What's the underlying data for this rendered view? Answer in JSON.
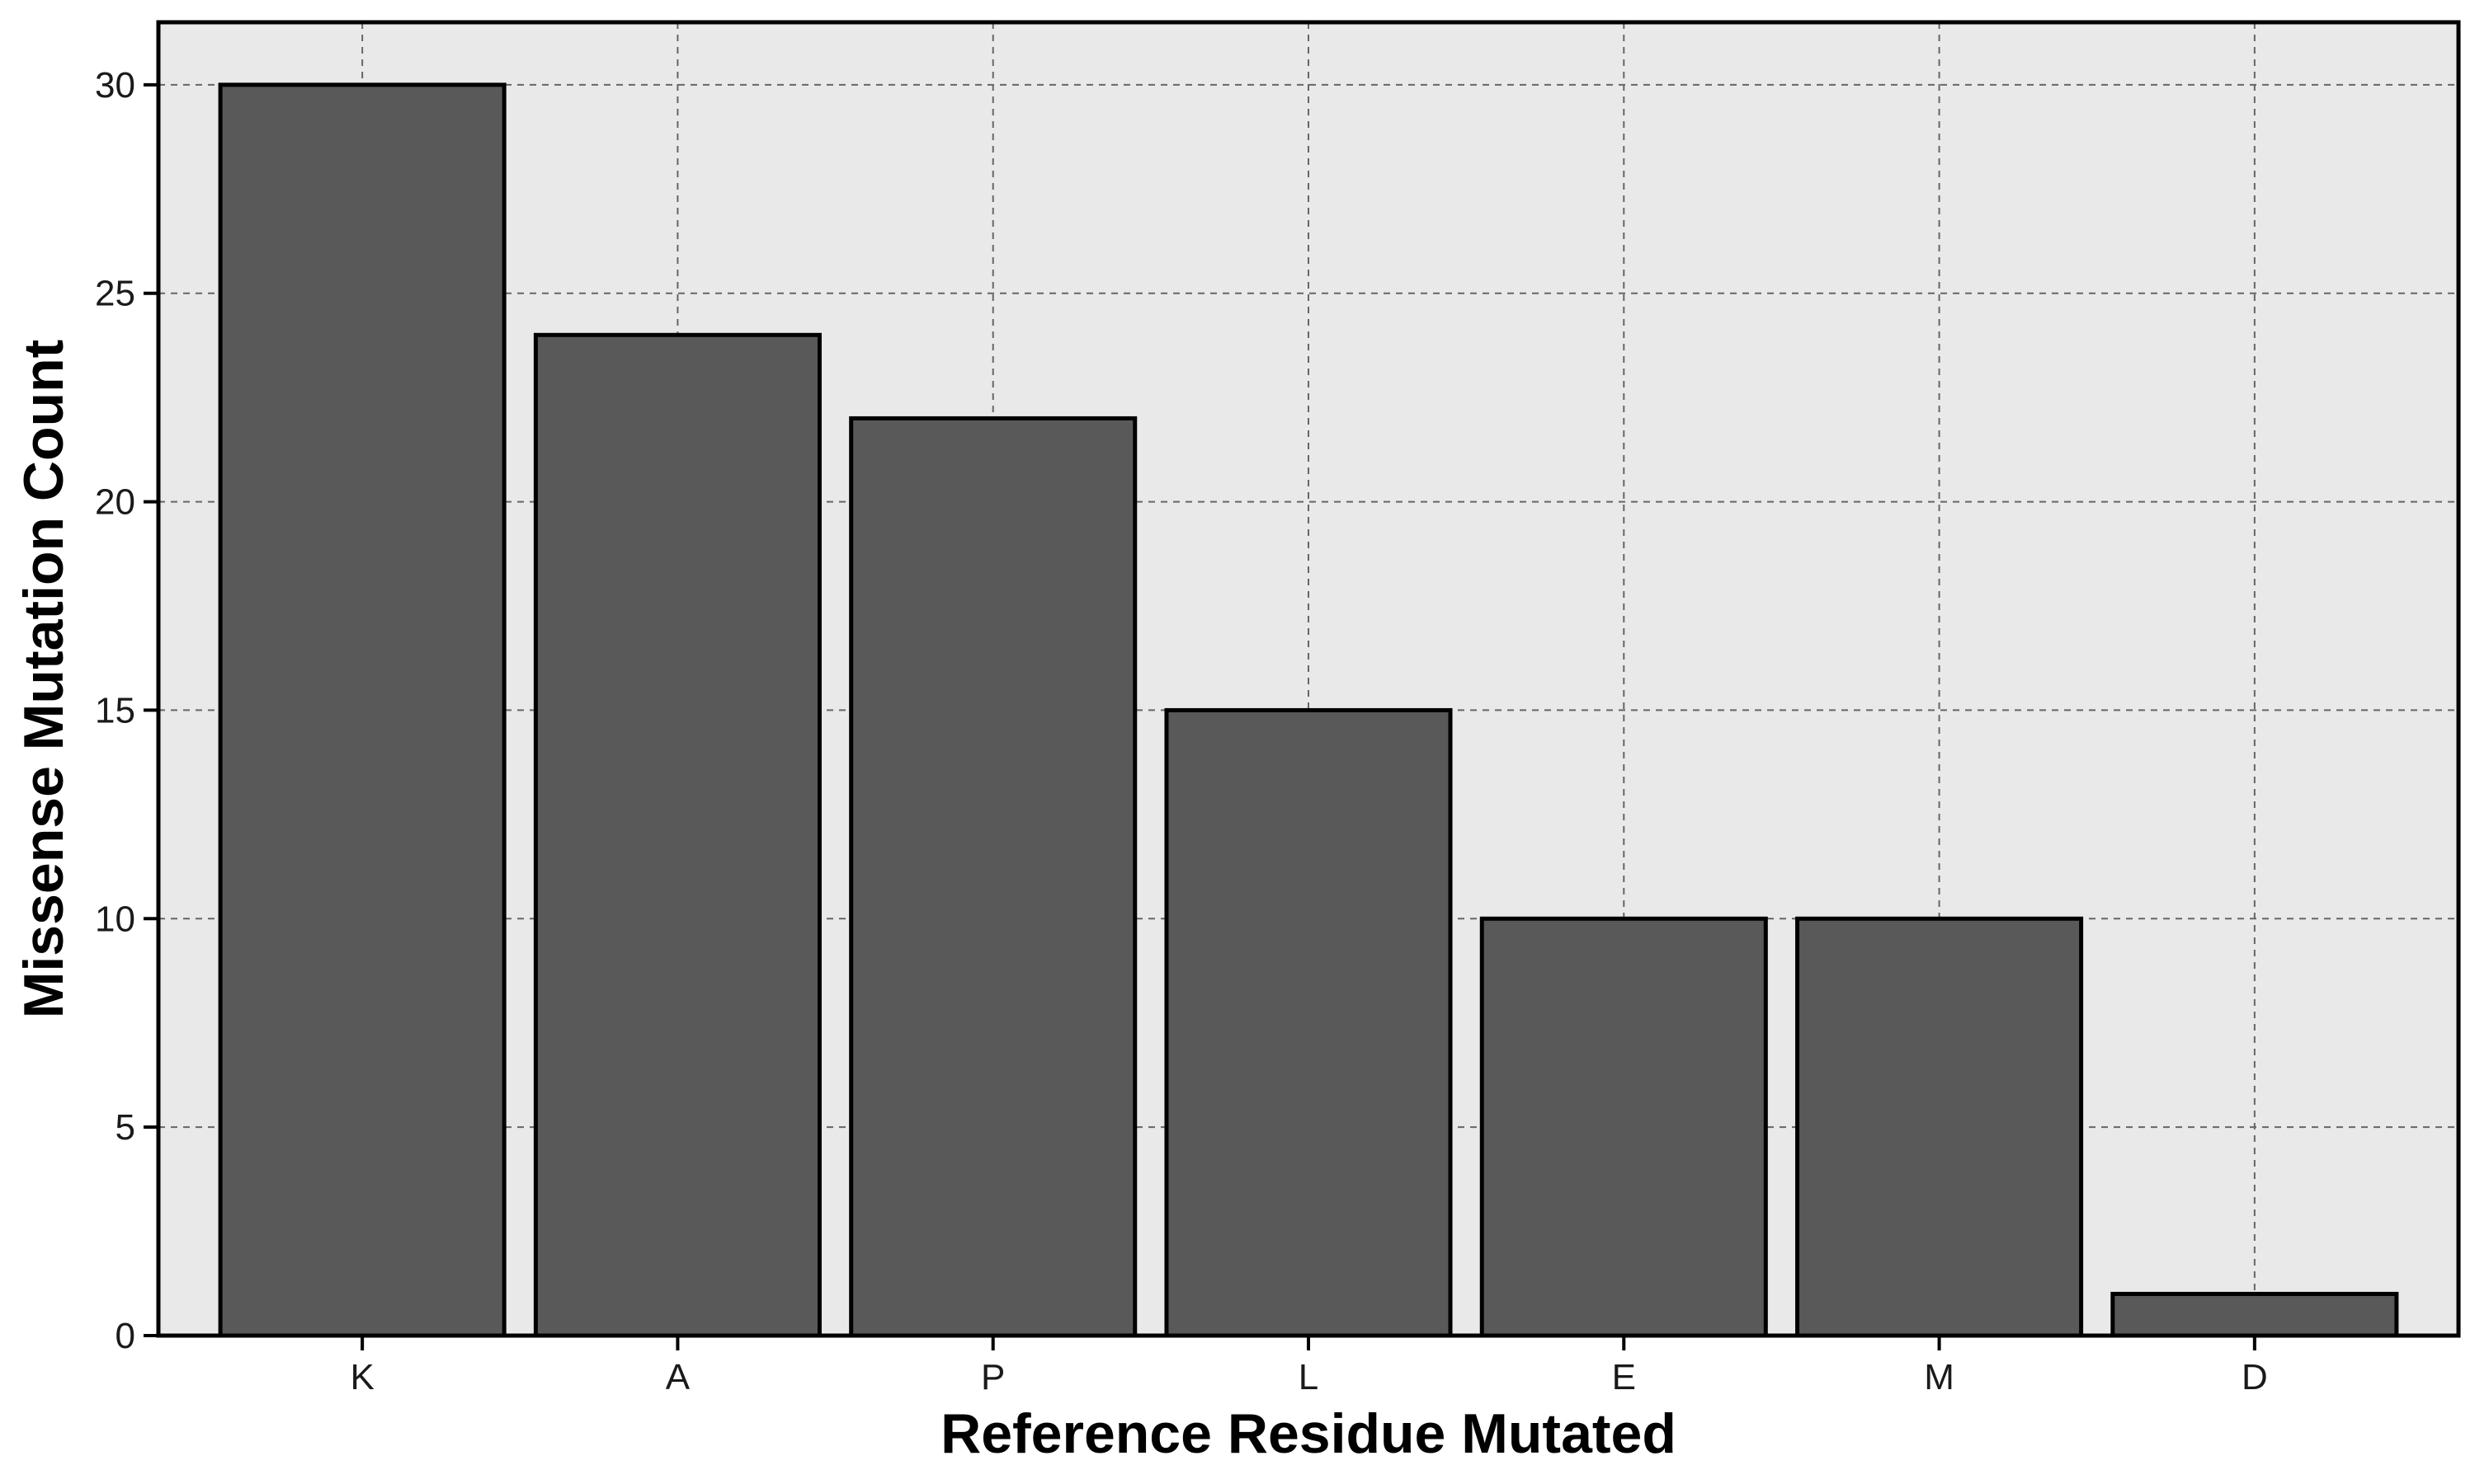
{
  "chart_data": {
    "type": "bar",
    "categories": [
      "K",
      "A",
      "P",
      "L",
      "E",
      "M",
      "D"
    ],
    "values": [
      30,
      24,
      22,
      15,
      10,
      10,
      1
    ],
    "title": "",
    "xlabel": "Reference Residue Mutated",
    "ylabel": "Missense Mutation Count",
    "ylim": [
      0,
      31.5
    ],
    "yticks": [
      0,
      5,
      10,
      15,
      20,
      25,
      30
    ],
    "grid": true,
    "legend": "none",
    "colors": {
      "bar_fill": "#595959",
      "bar_edge": "#000000",
      "panel_background": "#e9e9e9",
      "grid": "#666666",
      "frame": "#000000"
    }
  }
}
